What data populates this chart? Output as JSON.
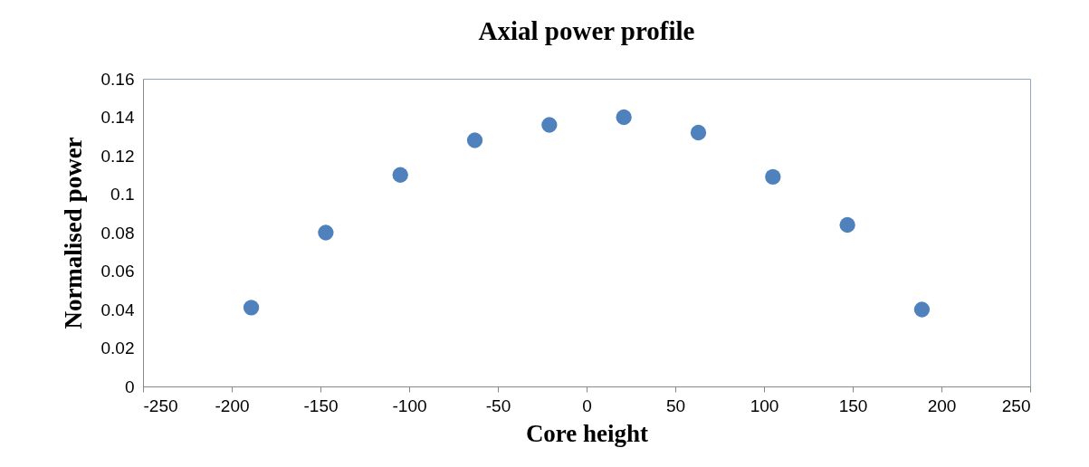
{
  "chart_data": {
    "type": "scatter",
    "title": "Axial power profile",
    "xlabel": "Core height",
    "ylabel": "Normalised power",
    "x": [
      -189,
      -147,
      -105,
      -63,
      -21,
      21,
      63,
      105,
      147,
      189
    ],
    "series": [
      {
        "color": "#4f81bd",
        "values": [
          0.041,
          0.08,
          0.11,
          0.128,
          0.136,
          0.14,
          0.132,
          0.109,
          0.084,
          0.04
        ]
      }
    ],
    "xlim": [
      -250,
      250
    ],
    "xticks": [
      -250,
      -200,
      -150,
      -100,
      -50,
      0,
      50,
      100,
      150,
      200,
      250
    ],
    "ylim": [
      0,
      0.16
    ],
    "yticks": [
      0,
      0.02,
      0.04,
      0.06,
      0.08,
      0.1,
      0.12,
      0.14,
      0.16
    ],
    "marker": "circle"
  }
}
